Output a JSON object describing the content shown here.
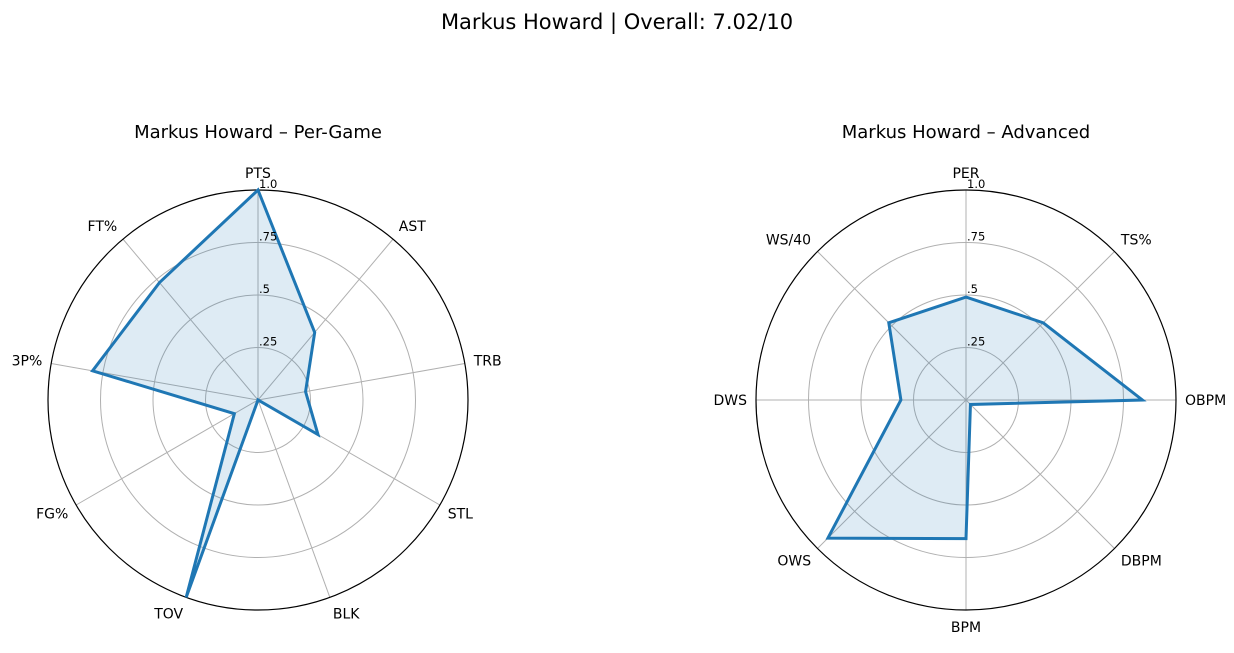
{
  "figure": {
    "title": "Markus Howard | Overall: 7.02/10"
  },
  "colors": {
    "line": "#1f77b4",
    "fill": "#1f77b4",
    "grid": "#b0b0b0",
    "spine": "#000000"
  },
  "chart_data": [
    {
      "type": "radar",
      "title": "Markus Howard – Per-Game",
      "categories": [
        "PTS",
        "AST",
        "TRB",
        "STL",
        "BLK",
        "TOV",
        "FG%",
        "3P%",
        "FT%"
      ],
      "values": [
        1.0,
        0.42,
        0.23,
        0.33,
        0.0,
        1.0,
        0.13,
        0.8,
        0.73
      ],
      "rlim": [
        0,
        1
      ],
      "rticks": [
        0.25,
        0.5,
        0.75,
        1.0
      ],
      "rtick_labels": [
        ".25",
        ".5",
        ".75",
        "1.0"
      ],
      "grid": true,
      "line_color": "#1f77b4",
      "fill_color": "#1f77b4"
    },
    {
      "type": "radar",
      "title": "Markus Howard – Advanced",
      "categories": [
        "PER",
        "TS%",
        "OBPM",
        "DBPM",
        "BPM",
        "OWS",
        "DWS",
        "WS/40"
      ],
      "values": [
        0.49,
        0.52,
        0.84,
        0.03,
        0.66,
        0.93,
        0.31,
        0.52
      ],
      "rlim": [
        0,
        1
      ],
      "rticks": [
        0.25,
        0.5,
        0.75,
        1.0
      ],
      "rtick_labels": [
        ".25",
        ".5",
        ".75",
        "1.0"
      ],
      "grid": true,
      "line_color": "#1f77b4",
      "fill_color": "#1f77b4"
    }
  ]
}
